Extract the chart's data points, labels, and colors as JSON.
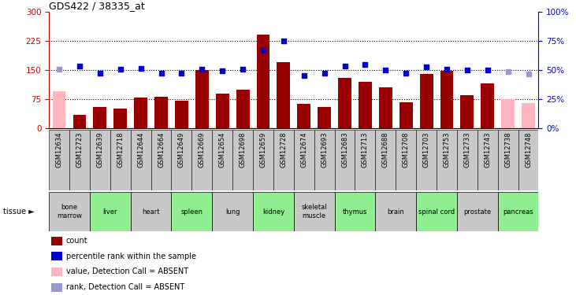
{
  "title": "GDS422 / 38335_at",
  "samples": [
    "GSM12634",
    "GSM12723",
    "GSM12639",
    "GSM12718",
    "GSM12644",
    "GSM12664",
    "GSM12649",
    "GSM12669",
    "GSM12654",
    "GSM12698",
    "GSM12659",
    "GSM12728",
    "GSM12674",
    "GSM12693",
    "GSM12683",
    "GSM12713",
    "GSM12688",
    "GSM12708",
    "GSM12703",
    "GSM12753",
    "GSM12733",
    "GSM12743",
    "GSM12738",
    "GSM12748"
  ],
  "bar_values": [
    95,
    35,
    55,
    50,
    80,
    82,
    72,
    150,
    90,
    100,
    242,
    170,
    63,
    55,
    130,
    120,
    105,
    68,
    140,
    148,
    85,
    115,
    75,
    65
  ],
  "bar_absent": [
    true,
    false,
    false,
    false,
    false,
    false,
    false,
    false,
    false,
    false,
    false,
    false,
    false,
    false,
    false,
    false,
    false,
    false,
    false,
    false,
    false,
    false,
    true,
    true
  ],
  "percentile_values": [
    152,
    160,
    143,
    153,
    155,
    143,
    143,
    153,
    149,
    152,
    200,
    225,
    135,
    142,
    160,
    165,
    150,
    142,
    158,
    152,
    150,
    150,
    147,
    140
  ],
  "percentile_absent": [
    true,
    false,
    false,
    false,
    false,
    false,
    false,
    false,
    false,
    false,
    false,
    false,
    false,
    false,
    false,
    false,
    false,
    false,
    false,
    false,
    false,
    false,
    true,
    true
  ],
  "tissues": [
    {
      "label": "bone\nmarrow",
      "start": 0,
      "end": 2,
      "color": "#c8c8c8"
    },
    {
      "label": "liver",
      "start": 2,
      "end": 4,
      "color": "#90EE90"
    },
    {
      "label": "heart",
      "start": 4,
      "end": 6,
      "color": "#c8c8c8"
    },
    {
      "label": "spleen",
      "start": 6,
      "end": 8,
      "color": "#90EE90"
    },
    {
      "label": "lung",
      "start": 8,
      "end": 10,
      "color": "#c8c8c8"
    },
    {
      "label": "kidney",
      "start": 10,
      "end": 12,
      "color": "#90EE90"
    },
    {
      "label": "skeletal\nmuscle",
      "start": 12,
      "end": 14,
      "color": "#c8c8c8"
    },
    {
      "label": "thymus",
      "start": 14,
      "end": 16,
      "color": "#90EE90"
    },
    {
      "label": "brain",
      "start": 16,
      "end": 18,
      "color": "#c8c8c8"
    },
    {
      "label": "spinal cord",
      "start": 18,
      "end": 20,
      "color": "#90EE90"
    },
    {
      "label": "prostate",
      "start": 20,
      "end": 22,
      "color": "#c8c8c8"
    },
    {
      "label": "pancreas",
      "start": 22,
      "end": 24,
      "color": "#90EE90"
    }
  ],
  "ylim_left": [
    0,
    300
  ],
  "ylim_right": [
    0,
    100
  ],
  "yticks_left": [
    0,
    75,
    150,
    225,
    300
  ],
  "yticks_right": [
    0,
    25,
    50,
    75,
    100
  ],
  "bar_color_normal": "#990000",
  "bar_color_absent": "#FFB6C1",
  "dot_color_normal": "#0000CC",
  "dot_color_absent": "#9999CC",
  "left_axis_color": "#CC0000",
  "right_axis_color": "#0000CC",
  "sample_bg_color": "#c8c8c8",
  "legend": [
    {
      "color": "#990000",
      "label": "count"
    },
    {
      "color": "#0000CC",
      "label": "percentile rank within the sample"
    },
    {
      "color": "#FFB6C1",
      "label": "value, Detection Call = ABSENT"
    },
    {
      "color": "#9999CC",
      "label": "rank, Detection Call = ABSENT"
    }
  ]
}
